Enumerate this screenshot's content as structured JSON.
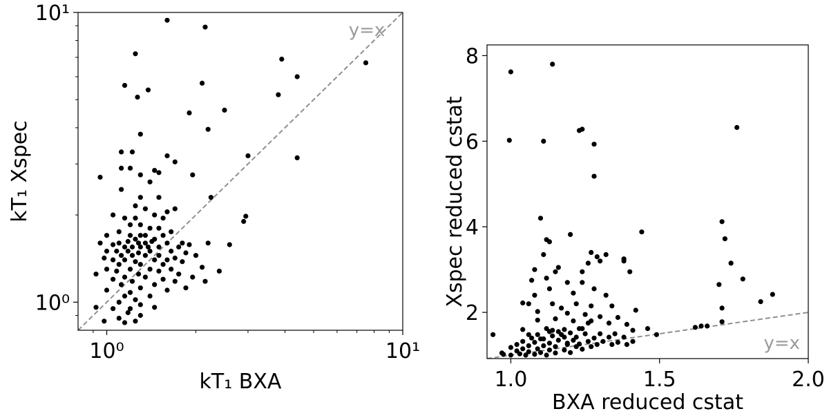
{
  "chart_data": [
    {
      "type": "scatter",
      "panel": "left",
      "xscale": "log",
      "yscale": "log",
      "xlim": [
        0.8,
        10
      ],
      "ylim": [
        0.8,
        10
      ],
      "xlabel": "kT₁ BXA",
      "ylabel": "kT₁ Xspec",
      "xticks": [
        {
          "value": 1,
          "label": "10⁰"
        },
        {
          "value": 10,
          "label": "10¹"
        }
      ],
      "yticks": [
        {
          "value": 1,
          "label": "10⁰"
        },
        {
          "value": 10,
          "label": "10¹"
        }
      ],
      "reference_line": {
        "label": "y=x",
        "color": "#8f8f8f"
      },
      "marker_color": "#000000",
      "points": [
        [
          1.6,
          9.4
        ],
        [
          2.15,
          8.9
        ],
        [
          1.25,
          7.2
        ],
        [
          7.5,
          6.7
        ],
        [
          3.9,
          6.9
        ],
        [
          4.4,
          6.0
        ],
        [
          1.15,
          5.6
        ],
        [
          1.38,
          5.4
        ],
        [
          1.27,
          5.1
        ],
        [
          2.1,
          5.7
        ],
        [
          3.8,
          5.2
        ],
        [
          1.9,
          4.5
        ],
        [
          2.5,
          4.6
        ],
        [
          1.3,
          3.8
        ],
        [
          2.2,
          3.95
        ],
        [
          1.12,
          3.3
        ],
        [
          1.22,
          3.3
        ],
        [
          1.6,
          3.2
        ],
        [
          1.7,
          3.05
        ],
        [
          3.0,
          3.2
        ],
        [
          4.4,
          3.15
        ],
        [
          1.12,
          2.9
        ],
        [
          1.2,
          2.9
        ],
        [
          1.45,
          2.85
        ],
        [
          1.5,
          2.8
        ],
        [
          0.95,
          2.7
        ],
        [
          1.3,
          2.75
        ],
        [
          1.95,
          2.75
        ],
        [
          1.4,
          2.6
        ],
        [
          1.12,
          2.45
        ],
        [
          2.25,
          2.3
        ],
        [
          1.3,
          2.3
        ],
        [
          1.5,
          2.3
        ],
        [
          1.25,
          2.15
        ],
        [
          1.35,
          2.1
        ],
        [
          1.45,
          2.0
        ],
        [
          1.6,
          2.05
        ],
        [
          1.7,
          2.1
        ],
        [
          1.05,
          2.0
        ],
        [
          1.15,
          1.95
        ],
        [
          1.25,
          1.95
        ],
        [
          1.55,
          1.95
        ],
        [
          2.95,
          1.98
        ],
        [
          2.9,
          1.9
        ],
        [
          1.2,
          1.85
        ],
        [
          1.3,
          1.85
        ],
        [
          1.4,
          1.8
        ],
        [
          1.1,
          1.75
        ],
        [
          1.5,
          1.8
        ],
        [
          1.0,
          1.7
        ],
        [
          1.2,
          1.7
        ],
        [
          1.35,
          1.7
        ],
        [
          1.55,
          1.7
        ],
        [
          1.65,
          1.75
        ],
        [
          1.25,
          1.65
        ],
        [
          1.45,
          1.65
        ],
        [
          1.1,
          1.6
        ],
        [
          1.6,
          1.6
        ],
        [
          0.95,
          1.6
        ],
        [
          1.05,
          1.58
        ],
        [
          1.15,
          1.55
        ],
        [
          1.22,
          1.55
        ],
        [
          1.3,
          1.55
        ],
        [
          1.38,
          1.55
        ],
        [
          1.5,
          1.55
        ],
        [
          1.75,
          1.55
        ],
        [
          1.8,
          1.6
        ],
        [
          1.9,
          1.58
        ],
        [
          2.2,
          1.6
        ],
        [
          2.6,
          1.58
        ],
        [
          1.0,
          1.5
        ],
        [
          1.08,
          1.5
        ],
        [
          1.18,
          1.5
        ],
        [
          1.28,
          1.48
        ],
        [
          1.4,
          1.5
        ],
        [
          1.65,
          1.5
        ],
        [
          1.12,
          1.45
        ],
        [
          1.22,
          1.45
        ],
        [
          1.35,
          1.45
        ],
        [
          1.5,
          1.45
        ],
        [
          1.85,
          1.48
        ],
        [
          2.0,
          1.45
        ],
        [
          0.98,
          1.42
        ],
        [
          1.05,
          1.4
        ],
        [
          1.15,
          1.4
        ],
        [
          1.25,
          1.38
        ],
        [
          1.45,
          1.4
        ],
        [
          1.6,
          1.4
        ],
        [
          1.7,
          1.42
        ],
        [
          1.1,
          1.35
        ],
        [
          1.3,
          1.35
        ],
        [
          1.55,
          1.35
        ],
        [
          1.8,
          1.38
        ],
        [
          1.0,
          1.3
        ],
        [
          1.2,
          1.3
        ],
        [
          1.4,
          1.3
        ],
        [
          1.65,
          1.3
        ],
        [
          2.1,
          1.32
        ],
        [
          1.08,
          1.28
        ],
        [
          1.28,
          1.25
        ],
        [
          1.5,
          1.28
        ],
        [
          1.75,
          1.25
        ],
        [
          2.4,
          1.28
        ],
        [
          1.15,
          1.22
        ],
        [
          1.35,
          1.22
        ],
        [
          1.55,
          1.2
        ],
        [
          1.95,
          1.22
        ],
        [
          0.92,
          1.25
        ],
        [
          1.05,
          1.2
        ],
        [
          1.22,
          1.18
        ],
        [
          1.45,
          1.15
        ],
        [
          1.7,
          1.18
        ],
        [
          2.15,
          1.18
        ],
        [
          1.12,
          1.15
        ],
        [
          1.3,
          1.12
        ],
        [
          1.6,
          1.1
        ],
        [
          1.85,
          1.12
        ],
        [
          1.0,
          1.1
        ],
        [
          1.2,
          1.08
        ],
        [
          1.4,
          1.05
        ],
        [
          1.15,
          1.05
        ],
        [
          1.25,
          1.02
        ],
        [
          1.1,
          1.0
        ],
        [
          1.3,
          0.98
        ],
        [
          1.45,
          0.96
        ],
        [
          0.92,
          0.96
        ],
        [
          1.2,
          0.95
        ],
        [
          1.05,
          0.95
        ],
        [
          1.18,
          0.92
        ],
        [
          1.3,
          0.9
        ],
        [
          1.1,
          0.88
        ],
        [
          0.98,
          0.86
        ],
        [
          1.25,
          0.86
        ],
        [
          1.15,
          0.85
        ],
        [
          1.3,
          1.7
        ],
        [
          1.18,
          1.62
        ],
        [
          1.42,
          1.62
        ],
        [
          1.35,
          1.6
        ],
        [
          1.28,
          1.6
        ]
      ]
    },
    {
      "type": "scatter",
      "panel": "right",
      "xlim": [
        0.92,
        2.0
      ],
      "ylim": [
        0.92,
        8.25
      ],
      "xlabel": "BXA reduced cstat",
      "ylabel": "Xspec reduced cstat",
      "xticks": [
        {
          "value": 1.0,
          "label": "1.0"
        },
        {
          "value": 1.5,
          "label": "1.5"
        },
        {
          "value": 2.0,
          "label": "2.0"
        }
      ],
      "yticks": [
        {
          "value": 2,
          "label": "2"
        },
        {
          "value": 4,
          "label": "4"
        },
        {
          "value": 6,
          "label": "6"
        },
        {
          "value": 8,
          "label": "8"
        }
      ],
      "reference_line": {
        "label": "y=x",
        "color": "#8f8f8f"
      },
      "marker_color": "#000000",
      "points": [
        [
          1.14,
          7.8
        ],
        [
          1.0,
          7.62
        ],
        [
          1.24,
          6.28
        ],
        [
          1.23,
          6.25
        ],
        [
          1.76,
          6.32
        ],
        [
          0.995,
          6.02
        ],
        [
          1.11,
          6.0
        ],
        [
          1.28,
          5.93
        ],
        [
          1.28,
          5.18
        ],
        [
          1.1,
          4.2
        ],
        [
          1.71,
          4.12
        ],
        [
          1.44,
          3.88
        ],
        [
          1.2,
          3.82
        ],
        [
          1.12,
          3.7
        ],
        [
          1.13,
          3.65
        ],
        [
          1.72,
          3.72
        ],
        [
          1.11,
          3.35
        ],
        [
          1.27,
          3.4
        ],
        [
          1.29,
          3.3
        ],
        [
          1.32,
          3.35
        ],
        [
          1.74,
          3.15
        ],
        [
          1.78,
          2.78
        ],
        [
          1.88,
          2.42
        ],
        [
          1.7,
          2.65
        ],
        [
          1.84,
          2.25
        ],
        [
          1.38,
          3.25
        ],
        [
          1.38,
          3.2
        ],
        [
          1.3,
          3.2
        ],
        [
          1.26,
          3.15
        ],
        [
          1.16,
          3.05
        ],
        [
          1.08,
          3.0
        ],
        [
          1.15,
          2.95
        ],
        [
          1.24,
          2.95
        ],
        [
          1.4,
          2.95
        ],
        [
          1.12,
          2.8
        ],
        [
          1.19,
          2.7
        ],
        [
          1.24,
          2.7
        ],
        [
          1.07,
          2.75
        ],
        [
          1.13,
          2.55
        ],
        [
          1.28,
          2.55
        ],
        [
          1.21,
          2.45
        ],
        [
          1.32,
          2.4
        ],
        [
          1.08,
          2.4
        ],
        [
          1.04,
          2.22
        ],
        [
          1.06,
          2.2
        ],
        [
          1.14,
          2.2
        ],
        [
          1.22,
          2.2
        ],
        [
          1.27,
          2.15
        ],
        [
          1.34,
          2.15
        ],
        [
          1.17,
          2.1
        ],
        [
          1.71,
          2.1
        ],
        [
          1.42,
          2.05
        ],
        [
          1.09,
          2.02
        ],
        [
          1.19,
          1.98
        ],
        [
          1.25,
          1.95
        ],
        [
          1.3,
          1.9
        ],
        [
          1.36,
          1.88
        ],
        [
          1.15,
          1.85
        ],
        [
          1.09,
          1.82
        ],
        [
          1.21,
          1.8
        ],
        [
          1.27,
          1.8
        ],
        [
          1.33,
          1.75
        ],
        [
          1.39,
          1.72
        ],
        [
          1.71,
          1.78
        ],
        [
          1.64,
          1.68
        ],
        [
          1.66,
          1.68
        ],
        [
          1.62,
          1.65
        ],
        [
          1.46,
          1.62
        ],
        [
          1.41,
          1.58
        ],
        [
          1.04,
          1.6
        ],
        [
          1.12,
          1.62
        ],
        [
          1.18,
          1.6
        ],
        [
          1.24,
          1.62
        ],
        [
          1.13,
          1.55
        ],
        [
          1.16,
          1.55
        ],
        [
          1.2,
          1.52
        ],
        [
          1.25,
          1.5
        ],
        [
          1.3,
          1.5
        ],
        [
          1.35,
          1.5
        ],
        [
          1.06,
          1.48
        ],
        [
          1.09,
          1.48
        ],
        [
          1.14,
          1.45
        ],
        [
          1.18,
          1.42
        ],
        [
          1.22,
          1.42
        ],
        [
          1.28,
          1.4
        ],
        [
          1.33,
          1.42
        ],
        [
          1.38,
          1.42
        ],
        [
          0.94,
          1.48
        ],
        [
          1.49,
          1.48
        ],
        [
          1.07,
          1.4
        ],
        [
          1.1,
          1.38
        ],
        [
          1.16,
          1.35
        ],
        [
          1.21,
          1.35
        ],
        [
          1.26,
          1.32
        ],
        [
          1.31,
          1.32
        ],
        [
          1.36,
          1.3
        ],
        [
          1.41,
          1.32
        ],
        [
          1.04,
          1.32
        ],
        [
          1.08,
          1.3
        ],
        [
          1.13,
          1.28
        ],
        [
          1.19,
          1.28
        ],
        [
          1.23,
          1.26
        ],
        [
          1.29,
          1.25
        ],
        [
          1.34,
          1.25
        ],
        [
          1.39,
          1.25
        ],
        [
          1.02,
          1.25
        ],
        [
          1.06,
          1.22
        ],
        [
          1.11,
          1.22
        ],
        [
          1.15,
          1.2
        ],
        [
          1.22,
          1.2
        ],
        [
          1.27,
          1.2
        ],
        [
          1.0,
          1.18
        ],
        [
          1.04,
          1.15
        ],
        [
          1.09,
          1.15
        ],
        [
          1.13,
          1.12
        ],
        [
          1.18,
          1.12
        ],
        [
          1.24,
          1.14
        ],
        [
          1.02,
          1.1
        ],
        [
          1.06,
          1.08
        ],
        [
          1.1,
          1.06
        ],
        [
          1.15,
          1.05
        ],
        [
          1.2,
          1.06
        ],
        [
          1.03,
          1.03
        ],
        [
          1.08,
          1.02
        ],
        [
          1.12,
          1.0
        ],
        [
          0.97,
          1.05
        ],
        [
          0.975,
          1.02
        ],
        [
          1.05,
          1.0
        ],
        [
          1.0,
          1.0
        ],
        [
          1.11,
          1.38
        ],
        [
          1.17,
          1.48
        ],
        [
          1.23,
          1.62
        ],
        [
          1.26,
          1.75
        ],
        [
          1.14,
          1.58
        ],
        [
          1.19,
          1.25
        ]
      ]
    }
  ]
}
